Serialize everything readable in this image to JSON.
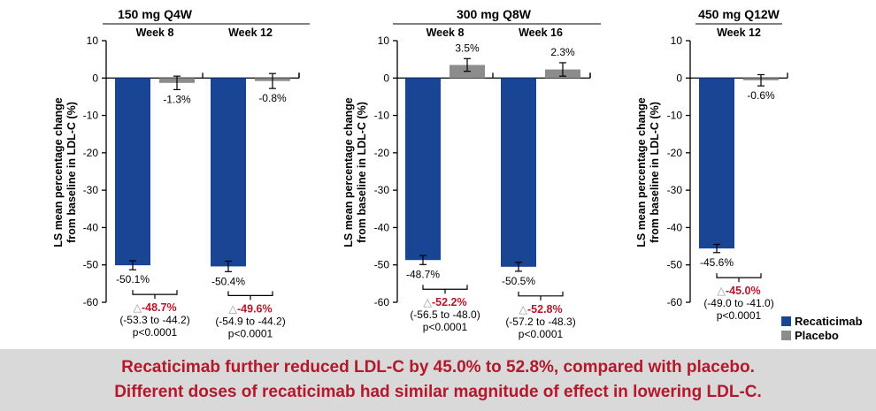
{
  "chart_data": {
    "type": "bar",
    "ylabel_lines": [
      "LS mean percentage change",
      "from baseline in LDL-C (%)"
    ],
    "ylim": [
      -60,
      10
    ],
    "yticks": [
      10,
      0,
      -10,
      -20,
      -30,
      -40,
      -50,
      -60
    ],
    "grid": false,
    "legend_position": "bottom-right",
    "series_names": [
      "Recaticimab",
      "Placebo"
    ],
    "colors": {
      "Recaticimab": "#1a4594",
      "Placebo": "#8c8c8c",
      "delta": "#b5172b"
    },
    "delta_symbol": "△",
    "panels": [
      {
        "title": "150 mg Q4W",
        "groups": [
          {
            "week": "Week 8",
            "recaticimab": -50.1,
            "recaticimab_label": "-50.1%",
            "recaticimab_err": 1.2,
            "placebo": -1.3,
            "placebo_label": "-1.3%",
            "placebo_err": 1.8,
            "delta": "-48.7%",
            "ci": "(-53.3 to -44.2)",
            "p": "p<0.0001"
          },
          {
            "week": "Week 12",
            "recaticimab": -50.4,
            "recaticimab_label": "-50.4%",
            "recaticimab_err": 1.4,
            "placebo": -0.8,
            "placebo_label": "-0.8%",
            "placebo_err": 2.0,
            "delta": "-49.6%",
            "ci": "(-54.9 to -44.2)",
            "p": "p<0.0001"
          }
        ]
      },
      {
        "title": "300 mg Q8W",
        "groups": [
          {
            "week": "Week 8",
            "recaticimab": -48.7,
            "recaticimab_label": "-48.7%",
            "recaticimab_err": 1.2,
            "placebo": 3.5,
            "placebo_label": "3.5%",
            "placebo_err": 1.7,
            "delta": "-52.2%",
            "ci": "(-56.5 to -48.0)",
            "p": "p<0.0001"
          },
          {
            "week": "Week 16",
            "recaticimab": -50.5,
            "recaticimab_label": "-50.5%",
            "recaticimab_err": 1.2,
            "placebo": 2.3,
            "placebo_label": "2.3%",
            "placebo_err": 1.8,
            "delta": "-52.8%",
            "ci": "(-57.2 to -48.3)",
            "p": "p<0.0001"
          }
        ]
      },
      {
        "title": "450 mg Q12W",
        "groups": [
          {
            "week": "Week 12",
            "recaticimab": -45.6,
            "recaticimab_label": "-45.6%",
            "recaticimab_err": 1.1,
            "placebo": -0.6,
            "placebo_label": "-0.6%",
            "placebo_err": 1.5,
            "delta": "-45.0%",
            "ci": "(-49.0 to -41.0)",
            "p": "p<0.0001"
          }
        ]
      }
    ]
  },
  "banner": {
    "line1": "Recaticimab further reduced LDL-C by 45.0% to 52.8%, compared with placebo.",
    "line2": "Different doses of recaticimab had similar magnitude of effect in lowering LDL-C."
  }
}
